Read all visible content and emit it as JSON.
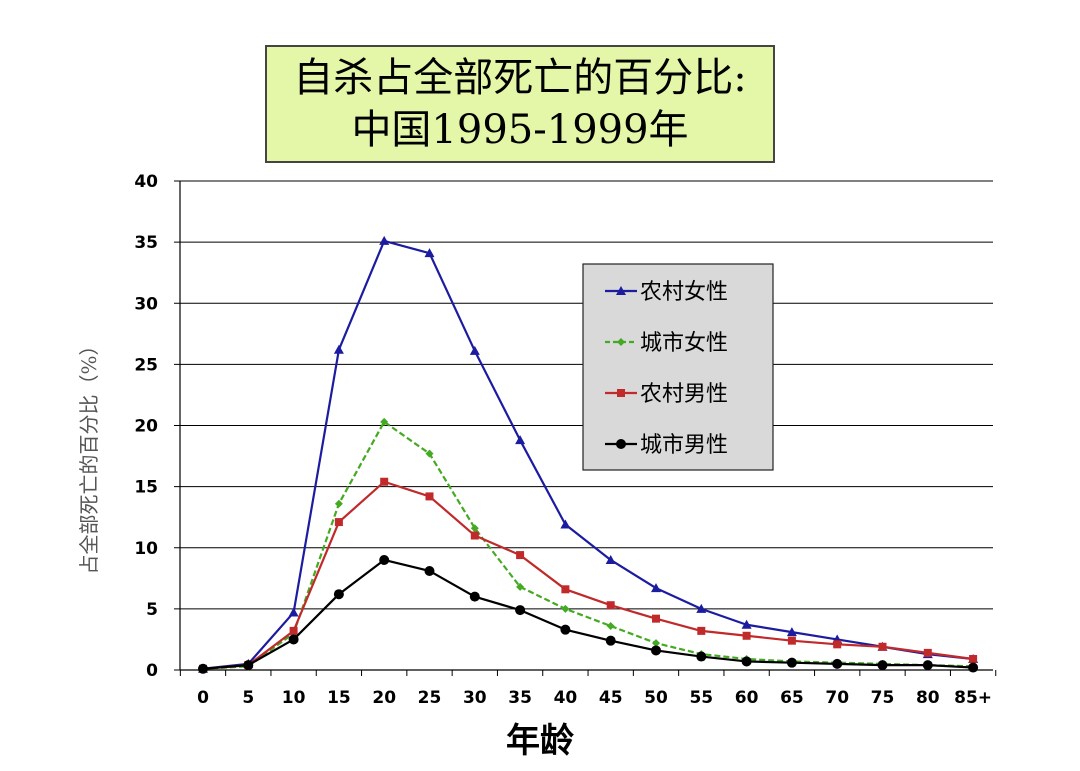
{
  "title": {
    "line1": "自杀占全部死亡的百分比:",
    "line2": "中国1995-1999年"
  },
  "colors": {
    "title_bg": "#e4f6a8",
    "legend_bg": "#d9d9d9",
    "grid": "#000000"
  },
  "chart_data": {
    "type": "line",
    "xlabel": "年龄",
    "ylabel": "占全部死亡的百分比（%）",
    "categories": [
      "0",
      "5",
      "10",
      "15",
      "20",
      "25",
      "30",
      "35",
      "40",
      "45",
      "50",
      "55",
      "60",
      "65",
      "70",
      "75",
      "80",
      "85+"
    ],
    "ylim": [
      0,
      40
    ],
    "yticks": [
      "0",
      "5",
      "10",
      "15",
      "20",
      "25",
      "30",
      "35",
      "40"
    ],
    "grid": true,
    "legend_position": "right",
    "series": [
      {
        "name": "农村女性",
        "color": "#1c1ca0",
        "marker": "triangle",
        "values": [
          0.1,
          0.5,
          4.7,
          26.2,
          35.1,
          34.1,
          26.1,
          18.8,
          11.9,
          9.0,
          6.7,
          5.0,
          3.7,
          3.1,
          2.5,
          1.9,
          1.3,
          0.9
        ]
      },
      {
        "name": "城市女性",
        "color": "#44aa22",
        "marker": "diamond",
        "dashed": true,
        "values": [
          0.1,
          0.3,
          3.0,
          13.6,
          20.3,
          17.7,
          11.6,
          6.8,
          5.0,
          3.6,
          2.2,
          1.3,
          0.9,
          0.7,
          0.6,
          0.5,
          0.4,
          0.3
        ]
      },
      {
        "name": "农村男性",
        "color": "#c02a2a",
        "marker": "square",
        "values": [
          0.1,
          0.4,
          3.2,
          12.1,
          15.4,
          14.2,
          11.0,
          9.4,
          6.6,
          5.3,
          4.2,
          3.2,
          2.8,
          2.4,
          2.1,
          1.9,
          1.4,
          0.9
        ]
      },
      {
        "name": "城市男性",
        "color": "#000000",
        "marker": "circle",
        "values": [
          0.1,
          0.4,
          2.5,
          6.2,
          9.0,
          8.1,
          6.0,
          4.9,
          3.3,
          2.4,
          1.6,
          1.1,
          0.7,
          0.6,
          0.5,
          0.4,
          0.4,
          0.2
        ]
      }
    ]
  }
}
